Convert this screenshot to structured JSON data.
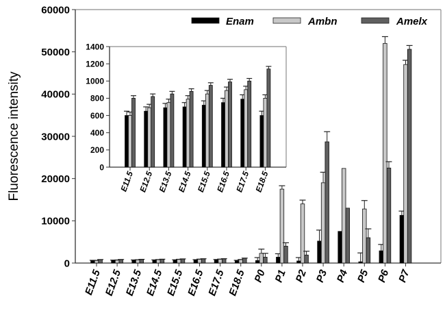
{
  "chart_data": [
    {
      "type": "bar",
      "title": "",
      "xlabel": "",
      "ylabel": "Fluorescence intensity",
      "ylim": [
        0,
        60000
      ],
      "yticks": [
        0,
        10000,
        20000,
        30000,
        40000,
        50000,
        60000
      ],
      "grid": false,
      "legend_position": "top-right",
      "categories": [
        "E11.5",
        "E12.5",
        "E13.5",
        "E14.5",
        "E15.5",
        "E16.5",
        "E17.5",
        "E18.5",
        "P0",
        "P1",
        "P2",
        "P3",
        "P4",
        "P5",
        "P6",
        "P7"
      ],
      "series": [
        {
          "name": "Enam",
          "color": "#000000",
          "values": [
            600,
            650,
            690,
            700,
            720,
            750,
            790,
            600,
            600,
            1400,
            500,
            5200,
            7500,
            300,
            2900,
            11300
          ],
          "errors": [
            50,
            50,
            50,
            50,
            50,
            50,
            50,
            50,
            700,
            800,
            800,
            2600,
            0,
            2100,
            1500,
            1000
          ]
        },
        {
          "name": "Ambn",
          "color": "#c8c8c8",
          "values": [
            600,
            690,
            750,
            790,
            850,
            890,
            900,
            800,
            2300,
            17500,
            14000,
            19000,
            22400,
            12800,
            52000,
            47000
          ],
          "errors": [
            40,
            40,
            40,
            40,
            40,
            40,
            40,
            40,
            1000,
            800,
            900,
            2500,
            0,
            2000,
            1600,
            1000
          ]
        },
        {
          "name": "Amelx",
          "color": "#606060",
          "values": [
            800,
            820,
            850,
            880,
            950,
            990,
            1000,
            1140,
            1400,
            4000,
            1900,
            28700,
            13000,
            6000,
            22500,
            50600
          ],
          "errors": [
            30,
            30,
            30,
            30,
            30,
            30,
            30,
            30,
            900,
            800,
            900,
            2400,
            0,
            2100,
            1500,
            900
          ]
        }
      ]
    },
    {
      "type": "bar",
      "title": "inset",
      "xlabel": "",
      "ylabel": "",
      "ylim": [
        0,
        1400
      ],
      "yticks": [
        0,
        200,
        400,
        600,
        800,
        1000,
        1200,
        1400
      ],
      "grid": false,
      "categories": [
        "E11.5",
        "E12.5",
        "E13.5",
        "E14.5",
        "E15.5",
        "E16.5",
        "E17.5",
        "E18.5"
      ],
      "series": [
        {
          "name": "Enam",
          "color": "#000000",
          "values": [
            600,
            650,
            690,
            700,
            720,
            750,
            790,
            600
          ],
          "errors": [
            50,
            50,
            50,
            50,
            50,
            50,
            50,
            50
          ]
        },
        {
          "name": "Ambn",
          "color": "#c8c8c8",
          "values": [
            600,
            690,
            750,
            790,
            850,
            890,
            900,
            800
          ],
          "errors": [
            40,
            40,
            40,
            40,
            40,
            40,
            40,
            40
          ]
        },
        {
          "name": "Amelx",
          "color": "#606060",
          "values": [
            800,
            820,
            850,
            880,
            950,
            990,
            1000,
            1140
          ],
          "errors": [
            30,
            30,
            30,
            30,
            30,
            30,
            30,
            30
          ]
        }
      ]
    }
  ],
  "legend": {
    "items": [
      {
        "label": "Enam",
        "color": "#000000"
      },
      {
        "label": "Ambn",
        "color": "#c8c8c8"
      },
      {
        "label": "Amelx",
        "color": "#606060"
      }
    ]
  },
  "axis": {
    "ylabel": "Fluorescence intensity"
  }
}
